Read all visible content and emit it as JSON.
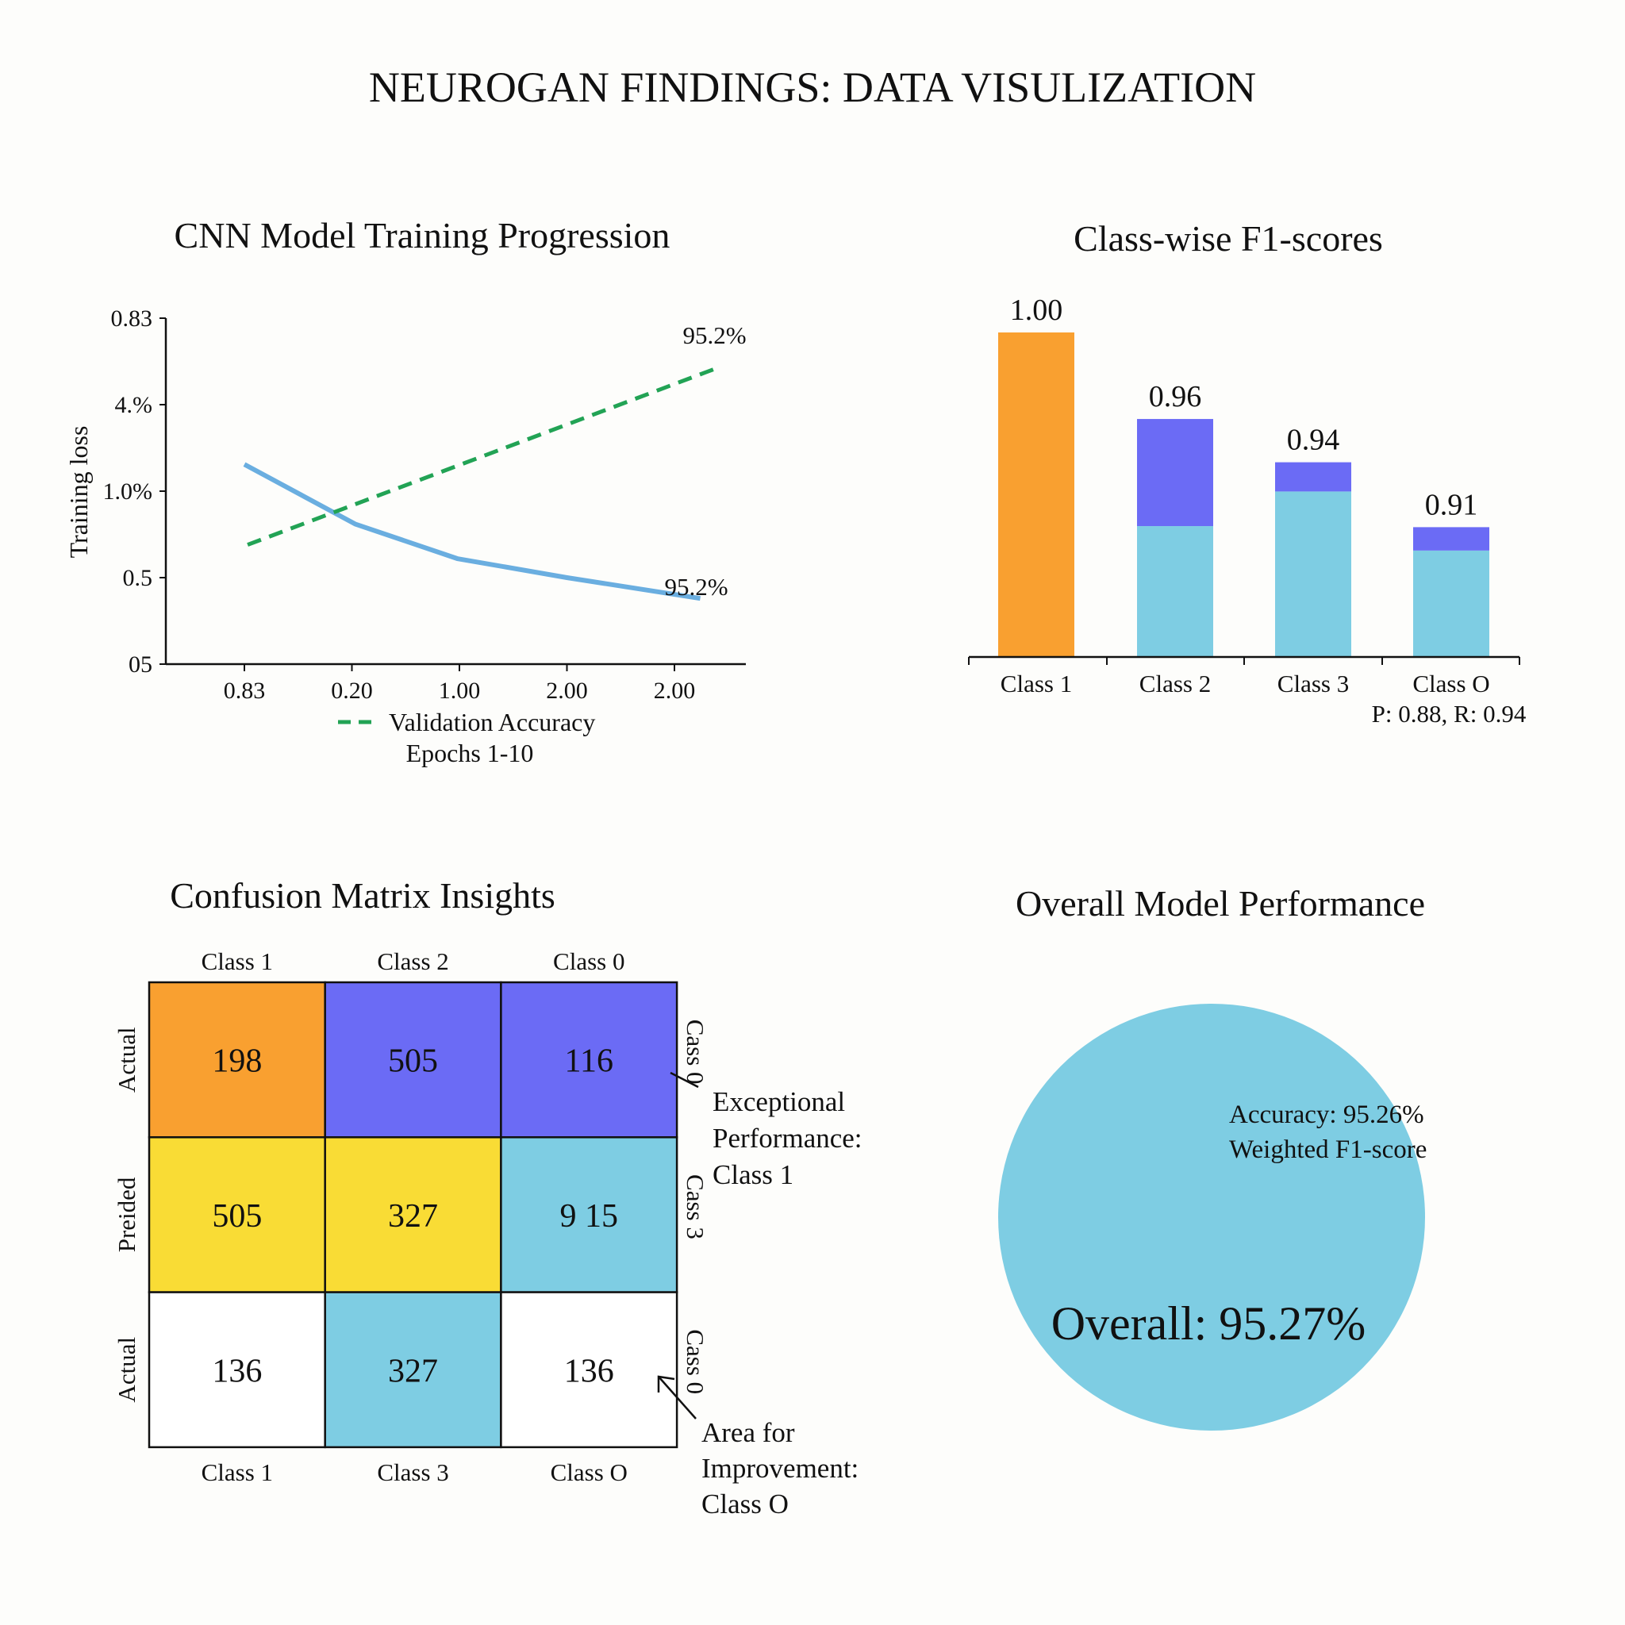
{
  "title": "NEUROGAN FINDINGS: DATA VISULIZATION",
  "colors": {
    "orange": "#f9a030",
    "blue": "#6b6bf5",
    "yellow": "#f9dc35",
    "light_blue": "#7ecde3",
    "line_blue": "#6aaee0",
    "green": "#22a355"
  },
  "chart_data": [
    {
      "type": "line",
      "title": "CNN Model Training Progression",
      "ylabel": "Training loss",
      "xlabel": "Epochs 1-10",
      "x_ticks": [
        "0.83",
        "0.20",
        "1.00",
        "2.00",
        "2.00"
      ],
      "y_ticks": [
        "05",
        "0.5",
        "1.0%",
        "4.%",
        "0.83"
      ],
      "ylim": [
        0,
        4
      ],
      "grid": false,
      "legend": {
        "position": "bottom",
        "entries": [
          "Validation Accuracy"
        ]
      },
      "series": [
        {
          "x": [
            0,
            1.03,
            1.98,
            3.0,
            4.24
          ],
          "y": [
            2.31,
            1.62,
            1.22,
            1.0,
            0.76
          ],
          "style": "solid",
          "color": "#6aaee0",
          "end_label": "95.2%"
        },
        {
          "name": "Validation Accuracy",
          "x": [
            0.03,
            4.41
          ],
          "y": [
            1.38,
            3.43
          ],
          "style": "dashed",
          "color": "#22a355",
          "end_label": "95.2%"
        }
      ]
    },
    {
      "type": "bar",
      "title": "Class-wise F1-scores",
      "categories": [
        "Class 1",
        "Class 2",
        "Class 3",
        "Class O"
      ],
      "values": [
        1.0,
        0.96,
        0.94,
        0.91
      ],
      "labels": [
        "1.00",
        "0.96",
        "0.94",
        "0.91"
      ],
      "lower_segment_share": [
        1.0,
        0.55,
        0.85,
        0.82
      ],
      "segment_colors": [
        "#7ecde3",
        "#6b6bf5"
      ],
      "single_colors": [
        "#f9a030"
      ],
      "annotation": "P: 0.88, R: 0.94",
      "ylim": [
        0.85,
        1.0
      ]
    },
    {
      "type": "heatmap",
      "title": "Confusion Matrix Insights",
      "col_labels_top": [
        "Class 1",
        "Class 2",
        "Class 0"
      ],
      "col_labels_bottom": [
        "Class 1",
        "Class 3",
        "Class O"
      ],
      "row_labels_left": [
        "Actual",
        "Preided",
        "Actual"
      ],
      "row_labels_right": [
        "Cass 0",
        "Cass 3",
        "Cass 0"
      ],
      "cells": [
        [
          "198",
          "505",
          "116"
        ],
        [
          "505",
          "327",
          "9 15"
        ],
        [
          "136",
          "327",
          "136"
        ]
      ],
      "cell_colors": [
        [
          "#f9a030",
          "#6b6bf5",
          "#6b6bf5"
        ],
        [
          "#f9dc35",
          "#f9dc35",
          "#7ecde3"
        ],
        [
          "#ffffff",
          "#7ecde3",
          "#ffffff"
        ]
      ],
      "annotations": [
        {
          "lines": [
            "Exceptional",
            "Performance:",
            "Class 1"
          ]
        },
        {
          "lines": [
            "Area for",
            "Improvement:",
            "Class O"
          ]
        }
      ]
    },
    {
      "type": "pie",
      "title": "Overall Model Performance",
      "values": [
        100
      ],
      "color": "#7ecde3",
      "text_lines": [
        "Accuracy: 95.26%",
        "Weighted F1-score"
      ],
      "center_label": "Overall: 95.27%"
    }
  ]
}
